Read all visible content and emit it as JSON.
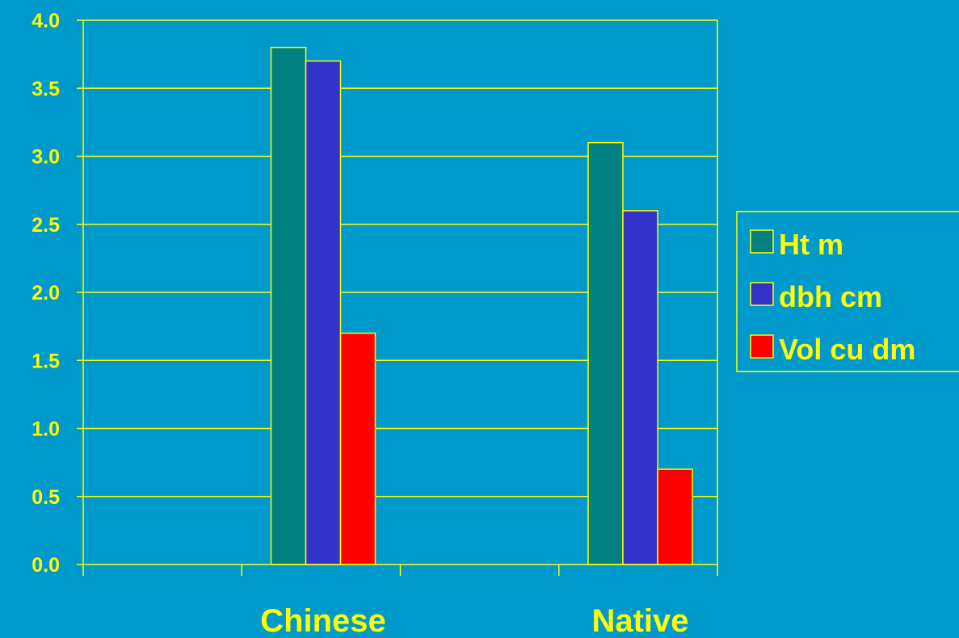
{
  "chart_data": {
    "type": "bar",
    "categories": [
      "Chinese",
      "Native"
    ],
    "series": [
      {
        "name": "Ht m",
        "values": [
          3.8,
          3.1
        ],
        "color": "#008080"
      },
      {
        "name": "dbh cm",
        "values": [
          3.7,
          2.6
        ],
        "color": "#3333cc"
      },
      {
        "name": "Vol cu dm",
        "values": [
          1.7,
          0.7
        ],
        "color": "#ff0000"
      }
    ],
    "y_ticks": [
      "0.0",
      "0.5",
      "1.0",
      "1.5",
      "2.0",
      "2.5",
      "3.0",
      "3.5",
      "4.0"
    ],
    "ylim": [
      0,
      4
    ],
    "grid": true,
    "legend_position": "right",
    "title": "",
    "xlabel": "",
    "ylabel": "",
    "colors": {
      "background": "#0099cc",
      "axis": "#ffff00",
      "text": "#ffff00"
    }
  }
}
